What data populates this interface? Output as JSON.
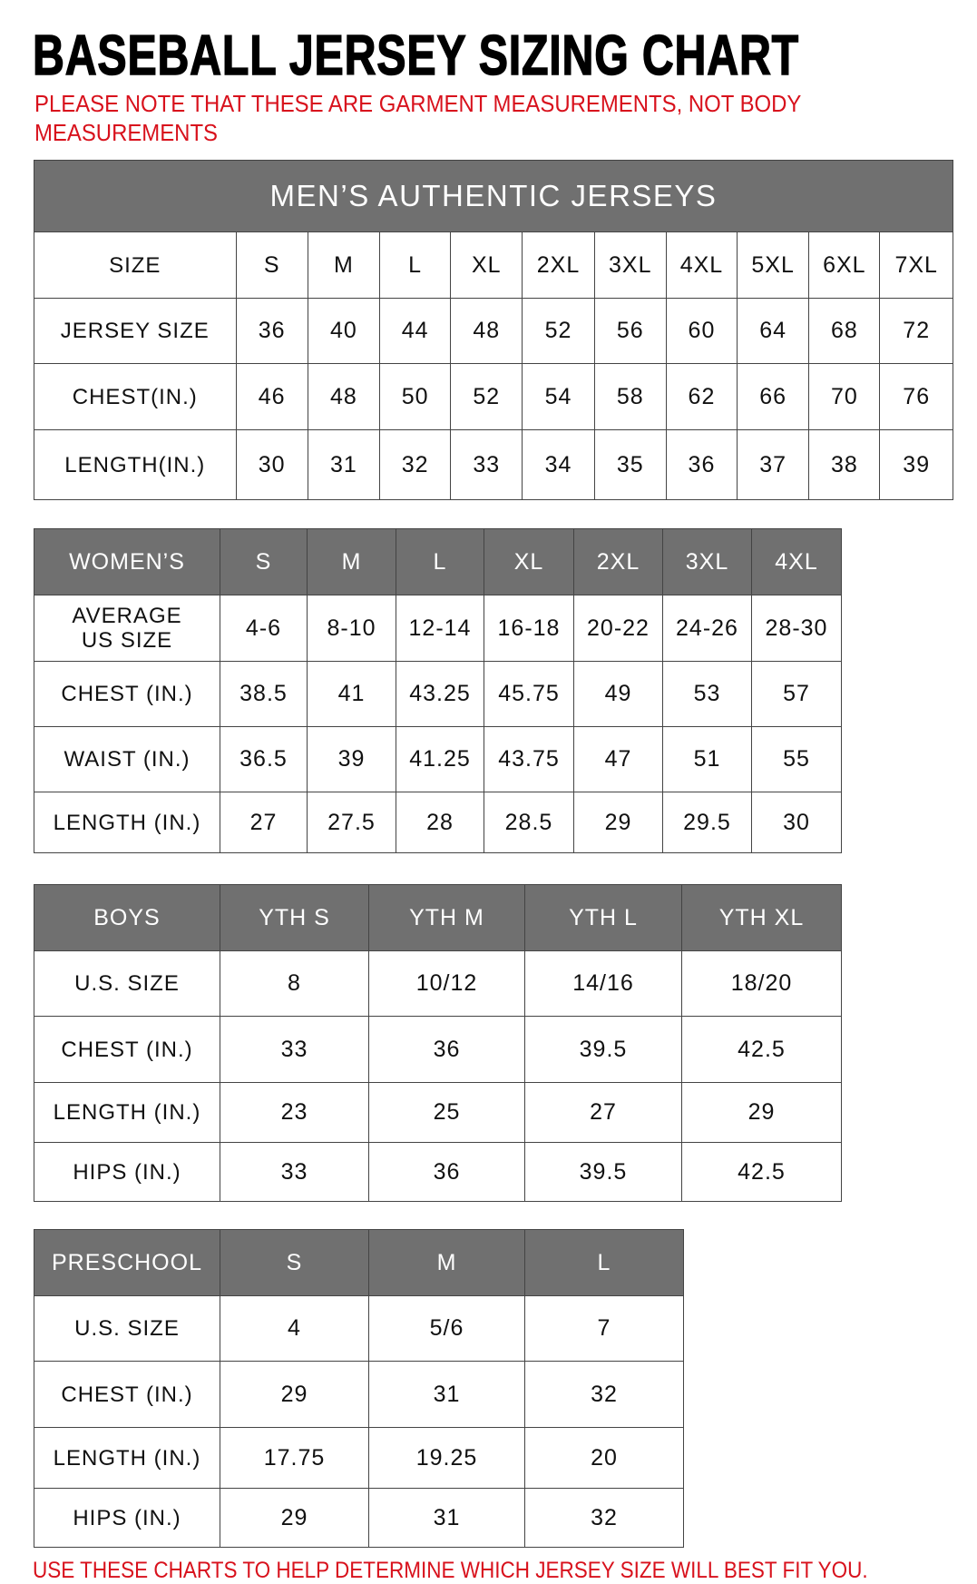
{
  "title": "BASEBALL JERSEY SIZING CHART",
  "note": "PLEASE NOTE THAT THESE ARE GARMENT MEASUREMENTS, NOT BODY MEASUREMENTS",
  "footer": "USE THESE CHARTS TO HELP DETERMINE WHICH JERSEY SIZE WILL BEST FIT YOU.",
  "colors": {
    "header_gray": "#707070",
    "note_red": "#d8111c"
  },
  "tables": [
    {
      "id": "mens",
      "caption": "MEN’S AUTHENTIC JERSEYS",
      "header_label": "SIZE",
      "header_in_gray": false,
      "columns": [
        "S",
        "M",
        "L",
        "XL",
        "2XL",
        "3XL",
        "4XL",
        "5XL",
        "6XL",
        "7XL"
      ],
      "rows": [
        {
          "label": "JERSEY SIZE",
          "values": [
            "36",
            "40",
            "44",
            "48",
            "52",
            "56",
            "60",
            "64",
            "68",
            "72"
          ]
        },
        {
          "label": "CHEST(IN.)",
          "values": [
            "46",
            "48",
            "50",
            "52",
            "54",
            "58",
            "62",
            "66",
            "70",
            "76"
          ]
        },
        {
          "label": "LENGTH(IN.)",
          "values": [
            "30",
            "31",
            "32",
            "33",
            "34",
            "35",
            "36",
            "37",
            "38",
            "39"
          ]
        }
      ]
    },
    {
      "id": "womens",
      "header_label": "WOMEN’S",
      "header_in_gray": true,
      "columns": [
        "S",
        "M",
        "L",
        "XL",
        "2XL",
        "3XL",
        "4XL"
      ],
      "rows": [
        {
          "label": "AVERAGE US SIZE",
          "values": [
            "4-6",
            "8-10",
            "12-14",
            "16-18",
            "20-22",
            "24-26",
            "28-30"
          ]
        },
        {
          "label": "CHEST (IN.)",
          "values": [
            "38.5",
            "41",
            "43.25",
            "45.75",
            "49",
            "53",
            "57"
          ]
        },
        {
          "label": "WAIST (IN.)",
          "values": [
            "36.5",
            "39",
            "41.25",
            "43.75",
            "47",
            "51",
            "55"
          ]
        },
        {
          "label": "LENGTH (IN.)",
          "values": [
            "27",
            "27.5",
            "28",
            "28.5",
            "29",
            "29.5",
            "30"
          ]
        }
      ]
    },
    {
      "id": "boys",
      "header_label": "BOYS",
      "header_in_gray": true,
      "columns": [
        "YTH S",
        "YTH M",
        "YTH L",
        "YTH XL"
      ],
      "rows": [
        {
          "label": "U.S. SIZE",
          "values": [
            "8",
            "10/12",
            "14/16",
            "18/20"
          ]
        },
        {
          "label": "CHEST (IN.)",
          "values": [
            "33",
            "36",
            "39.5",
            "42.5"
          ]
        },
        {
          "label": "LENGTH (IN.)",
          "values": [
            "23",
            "25",
            "27",
            "29"
          ]
        },
        {
          "label": "HIPS (IN.)",
          "values": [
            "33",
            "36",
            "39.5",
            "42.5"
          ]
        }
      ]
    },
    {
      "id": "preschool",
      "header_label": "PRESCHOOL",
      "header_in_gray": true,
      "columns": [
        "S",
        "M",
        "L"
      ],
      "rows": [
        {
          "label": "U.S. SIZE",
          "values": [
            "4",
            "5/6",
            "7"
          ]
        },
        {
          "label": "CHEST (IN.)",
          "values": [
            "29",
            "31",
            "32"
          ]
        },
        {
          "label": "LENGTH (IN.)",
          "values": [
            "17.75",
            "19.25",
            "20"
          ]
        },
        {
          "label": "HIPS (IN.)",
          "values": [
            "29",
            "31",
            "32"
          ]
        }
      ]
    }
  ]
}
